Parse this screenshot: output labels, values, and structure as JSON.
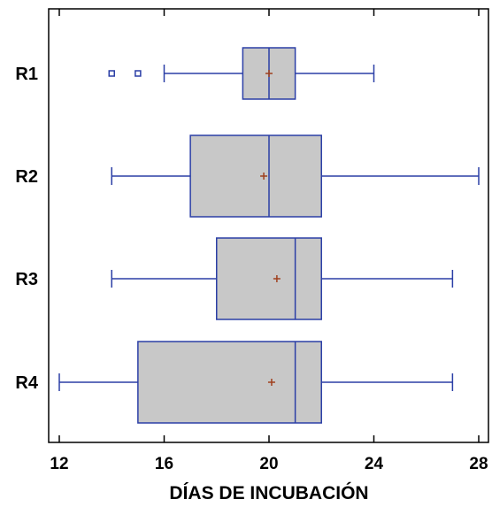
{
  "colors": {
    "box_fill": "#c8c8c8",
    "box_stroke": "#2b3fa6",
    "mean_marker": "#a0401e",
    "axis": "#000000"
  },
  "chart_data": {
    "type": "boxplot",
    "orientation": "horizontal",
    "title": "",
    "xlabel": "DÍAS DE INCUBACIÓN",
    "ylabel": "",
    "xlim": [
      12,
      28
    ],
    "xticks": [
      12,
      16,
      20,
      24,
      28
    ],
    "categories": [
      "R1",
      "R2",
      "R3",
      "R4"
    ],
    "boxes": [
      {
        "name": "R1",
        "whisker_low": 16,
        "q1": 19,
        "median": 20,
        "q3": 21,
        "whisker_high": 24,
        "mean": 20.0,
        "outliers": [
          14,
          15
        ]
      },
      {
        "name": "R2",
        "whisker_low": 14,
        "q1": 17,
        "median": 20,
        "q3": 22,
        "whisker_high": 28,
        "mean": 19.8,
        "outliers": []
      },
      {
        "name": "R3",
        "whisker_low": 14,
        "q1": 18,
        "median": 21,
        "q3": 22,
        "whisker_high": 27,
        "mean": 20.3,
        "outliers": []
      },
      {
        "name": "R4",
        "whisker_low": 12,
        "q1": 15,
        "median": 21,
        "q3": 22,
        "whisker_high": 27,
        "mean": 20.1,
        "outliers": []
      }
    ],
    "grid": false,
    "legend": "none"
  }
}
